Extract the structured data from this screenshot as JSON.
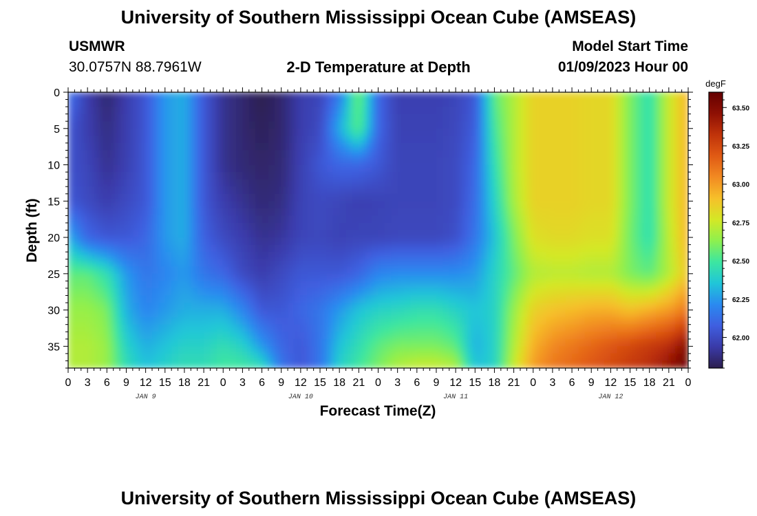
{
  "header": {
    "title": "University of Southern Mississippi Ocean Cube (AMSEAS)",
    "station_name": "USMWR",
    "coordinates": "30.0757N  88.7961W",
    "plot_title": "2-D Temperature at Depth",
    "model_start_label": "Model Start Time",
    "model_start_value": "01/09/2023 Hour 00"
  },
  "footer": {
    "title": "University of Southern Mississippi Ocean Cube (AMSEAS)"
  },
  "chart_data": {
    "type": "heatmap",
    "title": "2-D Temperature at Depth",
    "xlabel": "Forecast Time(Z)",
    "ylabel": "Depth (ft)",
    "x_tick_labels": [
      "0",
      "3",
      "6",
      "9",
      "12",
      "15",
      "18",
      "21",
      "0",
      "3",
      "6",
      "9",
      "12",
      "15",
      "18",
      "21",
      "0",
      "3",
      "6",
      "9",
      "12",
      "15",
      "18",
      "21",
      "0",
      "3",
      "6",
      "9",
      "12",
      "15",
      "18",
      "21",
      "0"
    ],
    "day_labels": [
      "JAN 9",
      "JAN 10",
      "JAN 11",
      "JAN 12"
    ],
    "x_range_hours": [
      0,
      96
    ],
    "y_ticks": [
      0,
      5,
      10,
      15,
      20,
      25,
      30,
      35
    ],
    "y_range_ft": [
      0,
      38
    ],
    "y_inverted": true,
    "colorbar": {
      "unit": "degF",
      "range": [
        61.8,
        63.6
      ],
      "tick_values": [
        62.0,
        62.25,
        62.5,
        62.75,
        63.0,
        63.25,
        63.5
      ],
      "tick_labels": [
        "62.00",
        "62.25",
        "62.50",
        "62.75",
        "63.00",
        "63.25",
        "63.50"
      ],
      "colormap": [
        "#2c1e4e",
        "#3a3aa8",
        "#3f5fe0",
        "#2a8af0",
        "#20c6d8",
        "#3de6a0",
        "#8ef04e",
        "#d4e826",
        "#f6c02a",
        "#f28a22",
        "#e05a14",
        "#c0330a",
        "#8e1004",
        "#650000"
      ]
    },
    "depths_ft": [
      0,
      5,
      10,
      15,
      20,
      25,
      30,
      35,
      38
    ],
    "times_hours": [
      0,
      3,
      6,
      9,
      12,
      15,
      18,
      21,
      24,
      27,
      30,
      33,
      36,
      39,
      42,
      45,
      48,
      51,
      54,
      57,
      60,
      63,
      66,
      69,
      72,
      75,
      78,
      81,
      84,
      87,
      90,
      93,
      96
    ],
    "temperature_degF": [
      [
        62.15,
        61.95,
        61.85,
        61.95,
        62.05,
        62.25,
        62.3,
        62.05,
        61.9,
        61.85,
        61.8,
        61.85,
        61.95,
        61.98,
        62.15,
        62.6,
        62.1,
        61.96,
        61.96,
        61.96,
        61.98,
        62.05,
        62.55,
        62.7,
        62.85,
        62.85,
        62.85,
        62.83,
        62.83,
        62.6,
        62.45,
        62.75,
        62.95
      ],
      [
        62.05,
        61.95,
        61.88,
        61.95,
        62.05,
        62.25,
        62.3,
        62.05,
        61.9,
        61.85,
        61.82,
        61.85,
        61.95,
        62.0,
        62.3,
        62.55,
        62.1,
        61.97,
        61.97,
        61.97,
        61.99,
        62.07,
        62.5,
        62.7,
        62.85,
        62.85,
        62.85,
        62.83,
        62.83,
        62.6,
        62.45,
        62.75,
        62.95
      ],
      [
        62.03,
        61.98,
        61.9,
        61.96,
        62.05,
        62.25,
        62.3,
        62.05,
        61.9,
        61.86,
        61.84,
        61.86,
        61.96,
        62.05,
        62.1,
        62.1,
        62.05,
        61.98,
        61.98,
        61.98,
        62.0,
        62.1,
        62.45,
        62.7,
        62.85,
        62.85,
        62.85,
        62.83,
        62.83,
        62.6,
        62.45,
        62.75,
        62.95
      ],
      [
        62.05,
        62.0,
        61.95,
        62.0,
        62.05,
        62.25,
        62.3,
        62.05,
        61.95,
        61.9,
        61.86,
        61.88,
        61.97,
        62.0,
        61.98,
        61.96,
        61.97,
        61.98,
        61.98,
        61.98,
        62.0,
        62.12,
        62.4,
        62.68,
        62.85,
        62.85,
        62.85,
        62.83,
        62.83,
        62.6,
        62.45,
        62.75,
        62.95
      ],
      [
        62.3,
        62.1,
        62.05,
        62.05,
        62.1,
        62.25,
        62.3,
        62.08,
        62.0,
        61.95,
        61.9,
        61.92,
        61.98,
        61.99,
        61.97,
        61.98,
        61.98,
        61.99,
        61.99,
        61.99,
        62.02,
        62.15,
        62.35,
        62.6,
        62.8,
        62.82,
        62.82,
        62.8,
        62.8,
        62.58,
        62.45,
        62.72,
        62.95
      ],
      [
        62.55,
        62.55,
        62.45,
        62.25,
        62.15,
        62.2,
        62.25,
        62.15,
        62.1,
        62.0,
        61.95,
        62.0,
        62.05,
        62.05,
        62.05,
        62.1,
        62.2,
        62.22,
        62.22,
        62.22,
        62.22,
        62.25,
        62.4,
        62.55,
        62.7,
        62.72,
        62.72,
        62.7,
        62.7,
        62.6,
        62.55,
        62.7,
        62.9
      ],
      [
        62.65,
        62.65,
        62.6,
        62.3,
        62.2,
        62.25,
        62.3,
        62.3,
        62.3,
        62.2,
        62.05,
        62.05,
        62.1,
        62.15,
        62.25,
        62.35,
        62.4,
        62.42,
        62.45,
        62.45,
        62.4,
        62.35,
        62.4,
        62.65,
        62.85,
        62.9,
        62.92,
        62.95,
        62.95,
        62.9,
        62.95,
        63.0,
        63.1
      ],
      [
        62.7,
        62.7,
        62.65,
        62.4,
        62.3,
        62.35,
        62.4,
        62.4,
        62.45,
        62.4,
        62.25,
        62.1,
        62.05,
        62.15,
        62.35,
        62.45,
        62.55,
        62.6,
        62.6,
        62.6,
        62.55,
        62.3,
        62.4,
        62.7,
        62.95,
        63.05,
        63.1,
        63.15,
        63.2,
        63.25,
        63.3,
        63.35,
        63.5
      ],
      [
        62.7,
        62.7,
        62.65,
        62.45,
        62.35,
        62.4,
        62.45,
        62.45,
        62.5,
        62.5,
        62.45,
        62.15,
        62.05,
        62.15,
        62.4,
        62.5,
        62.6,
        62.7,
        62.75,
        62.75,
        62.7,
        62.35,
        62.4,
        62.75,
        63.0,
        63.1,
        63.15,
        63.2,
        63.25,
        63.3,
        63.35,
        63.45,
        63.6
      ]
    ]
  }
}
